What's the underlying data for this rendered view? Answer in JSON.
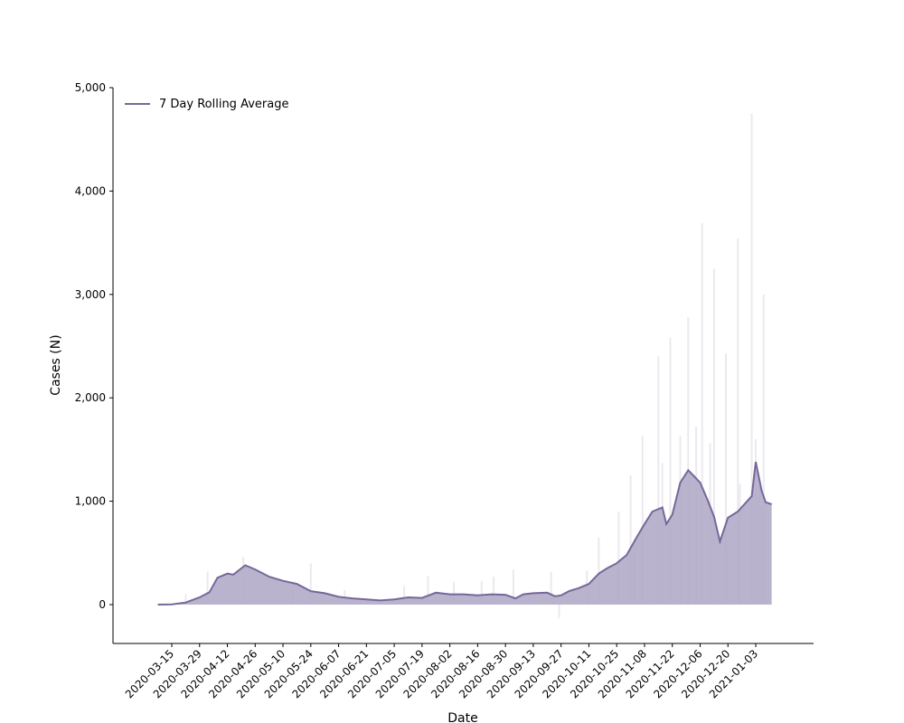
{
  "chart_data": {
    "type": "area",
    "title": "",
    "xlabel": "Date",
    "ylabel": "Cases (N)",
    "ylim": [
      -380,
      5000
    ],
    "yticks": [
      0,
      1000,
      2000,
      3000,
      4000,
      5000
    ],
    "ytick_labels": [
      "0",
      "1,000",
      "2,000",
      "3,000",
      "4,000",
      "5,000"
    ],
    "x_start": "2020-03-08",
    "x_end": "2021-01-11",
    "xticks": [
      "2020-03-15",
      "2020-03-29",
      "2020-04-12",
      "2020-04-26",
      "2020-05-10",
      "2020-05-24",
      "2020-06-07",
      "2020-06-21",
      "2020-07-05",
      "2020-07-19",
      "2020-08-02",
      "2020-08-16",
      "2020-08-30",
      "2020-09-13",
      "2020-09-27",
      "2020-10-11",
      "2020-10-25",
      "2020-11-08",
      "2020-11-22",
      "2020-12-06",
      "2020-12-20",
      "2021-01-03"
    ],
    "legend": {
      "position": "top-left",
      "entries": [
        "7 Day Rolling Average"
      ]
    },
    "colors": {
      "line": "#76679a",
      "fill": "#b3abc8",
      "bars": "#ebe9ee"
    },
    "series": [
      {
        "name": "7 Day Rolling Average",
        "kind": "line",
        "points": [
          {
            "x": "2020-03-08",
            "y": 0
          },
          {
            "x": "2020-03-15",
            "y": 3
          },
          {
            "x": "2020-03-22",
            "y": 20
          },
          {
            "x": "2020-03-29",
            "y": 70
          },
          {
            "x": "2020-04-03",
            "y": 120
          },
          {
            "x": "2020-04-07",
            "y": 260
          },
          {
            "x": "2020-04-12",
            "y": 300
          },
          {
            "x": "2020-04-15",
            "y": 290
          },
          {
            "x": "2020-04-21",
            "y": 380
          },
          {
            "x": "2020-04-26",
            "y": 340
          },
          {
            "x": "2020-05-03",
            "y": 270
          },
          {
            "x": "2020-05-10",
            "y": 230
          },
          {
            "x": "2020-05-17",
            "y": 200
          },
          {
            "x": "2020-05-24",
            "y": 130
          },
          {
            "x": "2020-05-31",
            "y": 110
          },
          {
            "x": "2020-06-07",
            "y": 75
          },
          {
            "x": "2020-06-14",
            "y": 60
          },
          {
            "x": "2020-06-21",
            "y": 50
          },
          {
            "x": "2020-06-28",
            "y": 40
          },
          {
            "x": "2020-07-05",
            "y": 50
          },
          {
            "x": "2020-07-12",
            "y": 70
          },
          {
            "x": "2020-07-19",
            "y": 65
          },
          {
            "x": "2020-07-26",
            "y": 115
          },
          {
            "x": "2020-08-02",
            "y": 100
          },
          {
            "x": "2020-08-09",
            "y": 100
          },
          {
            "x": "2020-08-16",
            "y": 90
          },
          {
            "x": "2020-08-23",
            "y": 100
          },
          {
            "x": "2020-08-30",
            "y": 95
          },
          {
            "x": "2020-09-04",
            "y": 60
          },
          {
            "x": "2020-09-08",
            "y": 100
          },
          {
            "x": "2020-09-13",
            "y": 110
          },
          {
            "x": "2020-09-20",
            "y": 115
          },
          {
            "x": "2020-09-24",
            "y": 80
          },
          {
            "x": "2020-09-27",
            "y": 90
          },
          {
            "x": "2020-10-01",
            "y": 130
          },
          {
            "x": "2020-10-06",
            "y": 160
          },
          {
            "x": "2020-10-11",
            "y": 200
          },
          {
            "x": "2020-10-16",
            "y": 300
          },
          {
            "x": "2020-10-20",
            "y": 350
          },
          {
            "x": "2020-10-25",
            "y": 400
          },
          {
            "x": "2020-10-30",
            "y": 480
          },
          {
            "x": "2020-11-04",
            "y": 650
          },
          {
            "x": "2020-11-08",
            "y": 780
          },
          {
            "x": "2020-11-12",
            "y": 900
          },
          {
            "x": "2020-11-17",
            "y": 940
          },
          {
            "x": "2020-11-19",
            "y": 780
          },
          {
            "x": "2020-11-22",
            "y": 870
          },
          {
            "x": "2020-11-26",
            "y": 1180
          },
          {
            "x": "2020-11-30",
            "y": 1300
          },
          {
            "x": "2020-12-03",
            "y": 1240
          },
          {
            "x": "2020-12-06",
            "y": 1180
          },
          {
            "x": "2020-12-10",
            "y": 1000
          },
          {
            "x": "2020-12-13",
            "y": 850
          },
          {
            "x": "2020-12-16",
            "y": 610
          },
          {
            "x": "2020-12-20",
            "y": 840
          },
          {
            "x": "2020-12-25",
            "y": 900
          },
          {
            "x": "2021-01-01",
            "y": 1050
          },
          {
            "x": "2021-01-03",
            "y": 1380
          },
          {
            "x": "2021-01-06",
            "y": 1100
          },
          {
            "x": "2021-01-08",
            "y": 990
          },
          {
            "x": "2021-01-11",
            "y": 970
          }
        ]
      },
      {
        "name": "",
        "kind": "bars",
        "points": [
          {
            "x": "2020-03-22",
            "y": 100
          },
          {
            "x": "2020-04-02",
            "y": 320
          },
          {
            "x": "2020-04-20",
            "y": 460
          },
          {
            "x": "2020-05-15",
            "y": 220
          },
          {
            "x": "2020-05-24",
            "y": 400
          },
          {
            "x": "2020-06-10",
            "y": 140
          },
          {
            "x": "2020-07-10",
            "y": 180
          },
          {
            "x": "2020-07-22",
            "y": 280
          },
          {
            "x": "2020-08-04",
            "y": 220
          },
          {
            "x": "2020-08-18",
            "y": 230
          },
          {
            "x": "2020-08-24",
            "y": 270
          },
          {
            "x": "2020-09-03",
            "y": 340
          },
          {
            "x": "2020-09-22",
            "y": 320
          },
          {
            "x": "2020-09-26",
            "y": -130
          },
          {
            "x": "2020-10-10",
            "y": 330
          },
          {
            "x": "2020-10-16",
            "y": 650
          },
          {
            "x": "2020-10-26",
            "y": 900
          },
          {
            "x": "2020-11-01",
            "y": 1250
          },
          {
            "x": "2020-11-03",
            "y": 620
          },
          {
            "x": "2020-11-07",
            "y": 1630
          },
          {
            "x": "2020-11-15",
            "y": 2400
          },
          {
            "x": "2020-11-17",
            "y": 1370
          },
          {
            "x": "2020-11-21",
            "y": 2580
          },
          {
            "x": "2020-11-26",
            "y": 1630
          },
          {
            "x": "2020-11-30",
            "y": 2780
          },
          {
            "x": "2020-12-04",
            "y": 1720
          },
          {
            "x": "2020-12-07",
            "y": 3690
          },
          {
            "x": "2020-12-11",
            "y": 1560
          },
          {
            "x": "2020-12-13",
            "y": 3250
          },
          {
            "x": "2020-12-19",
            "y": 2430
          },
          {
            "x": "2020-12-25",
            "y": 3540
          },
          {
            "x": "2020-12-26",
            "y": 1170
          },
          {
            "x": "2021-01-01",
            "y": 4750
          },
          {
            "x": "2021-01-03",
            "y": 1600
          },
          {
            "x": "2021-01-05",
            "y": 1130
          },
          {
            "x": "2021-01-07",
            "y": 3000
          }
        ]
      }
    ]
  }
}
